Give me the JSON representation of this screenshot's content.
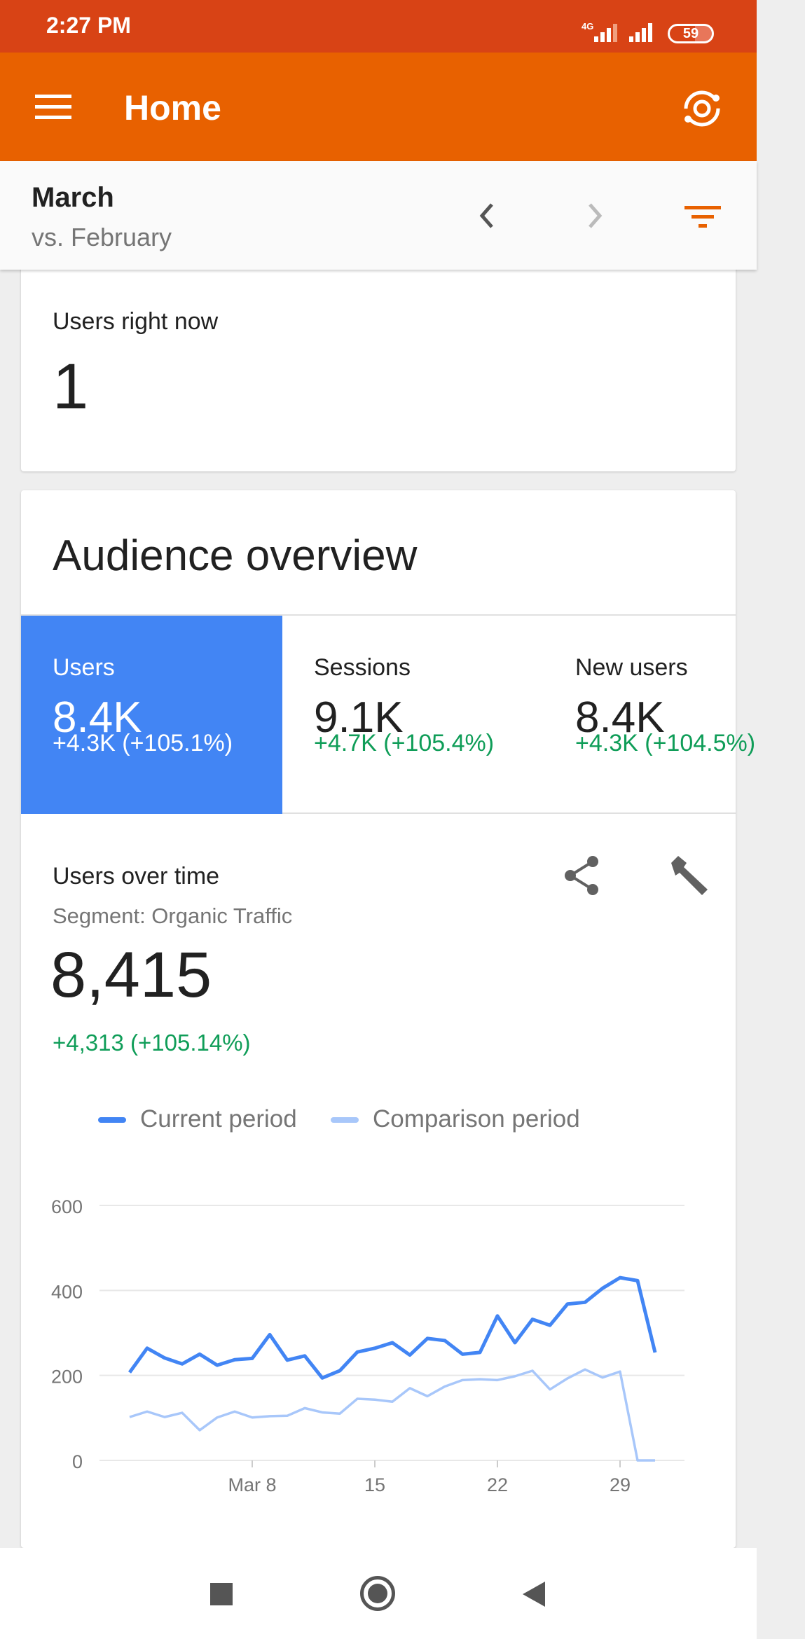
{
  "status": {
    "time": "2:27 PM",
    "network": "4G",
    "battery": "59"
  },
  "appbar": {
    "title": "Home"
  },
  "datebar": {
    "period": "March",
    "comparison": "vs. February"
  },
  "realtime": {
    "label": "Users right now",
    "value": "1"
  },
  "audience": {
    "title": "Audience overview",
    "tabs": [
      {
        "label": "Users",
        "value": "8.4K",
        "delta": "+4.3K (+105.1%)"
      },
      {
        "label": "Sessions",
        "value": "9.1K",
        "delta": "+4.7K (+105.4%)"
      },
      {
        "label": "New users",
        "value": "8.4K",
        "delta": "+4.3K (+104.5%)"
      }
    ],
    "metric_title": "Users over time",
    "segment": "Segment: Organic Traffic",
    "total": "8,415",
    "total_delta": "+4,313 (+105.14%)"
  },
  "colors": {
    "accent": "#e86100",
    "status": "#d84315",
    "blue": "#4285f4",
    "light_blue": "#a8c7fa",
    "green": "#0f9d58"
  },
  "chart_data": {
    "type": "line",
    "legend": [
      "Current period",
      "Comparison period"
    ],
    "legend_placement": "top",
    "x": [
      1,
      2,
      3,
      4,
      5,
      6,
      7,
      8,
      9,
      10,
      11,
      12,
      13,
      14,
      15,
      16,
      17,
      18,
      19,
      20,
      21,
      22,
      23,
      24,
      25,
      26,
      27,
      28,
      29,
      30,
      31
    ],
    "xticks": [
      {
        "day": 8,
        "label": "Mar 8"
      },
      {
        "day": 15,
        "label": "15"
      },
      {
        "day": 22,
        "label": "22"
      },
      {
        "day": 29,
        "label": "29"
      }
    ],
    "yticks": [
      "0",
      "200",
      "400",
      "600"
    ],
    "ylim": [
      0,
      600
    ],
    "series": [
      {
        "name": "Current period",
        "values": [
          207,
          264,
          241,
          227,
          250,
          224,
          237,
          240,
          296,
          236,
          246,
          194,
          211,
          255,
          264,
          277,
          248,
          287,
          282,
          250,
          254,
          340,
          277,
          332,
          318,
          368,
          372,
          405,
          430,
          423,
          254
        ]
      },
      {
        "name": "Comparison period",
        "values": [
          102,
          115,
          102,
          112,
          71,
          101,
          115,
          101,
          104,
          105,
          123,
          113,
          110,
          145,
          143,
          138,
          170,
          151,
          174,
          189,
          191,
          189,
          198,
          211,
          167,
          193,
          214,
          195,
          209,
          0,
          0
        ]
      }
    ]
  }
}
